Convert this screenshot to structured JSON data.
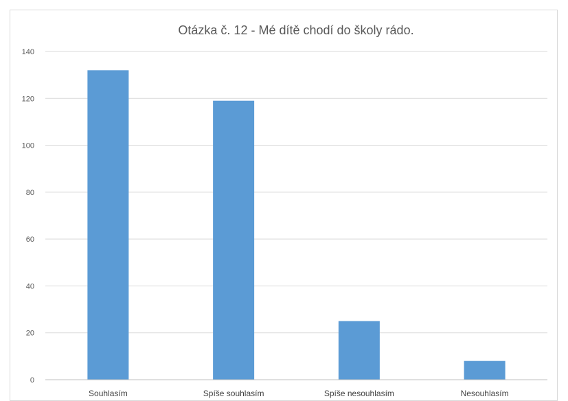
{
  "chart_data": {
    "type": "bar",
    "title": "Otázka č. 12 - Mé dítě chodí do školy rádo.",
    "categories": [
      "Souhlasím",
      "Spíše souhlasím",
      "Spíše nesouhlasím",
      "Nesouhlasím"
    ],
    "values": [
      132,
      119,
      25,
      8
    ],
    "xlabel": "",
    "ylabel": "",
    "ylim": [
      0,
      140
    ],
    "yticks": [
      0,
      20,
      40,
      60,
      80,
      100,
      120,
      140
    ],
    "grid": true,
    "legend": "none",
    "bar_color": "#5b9bd5"
  }
}
